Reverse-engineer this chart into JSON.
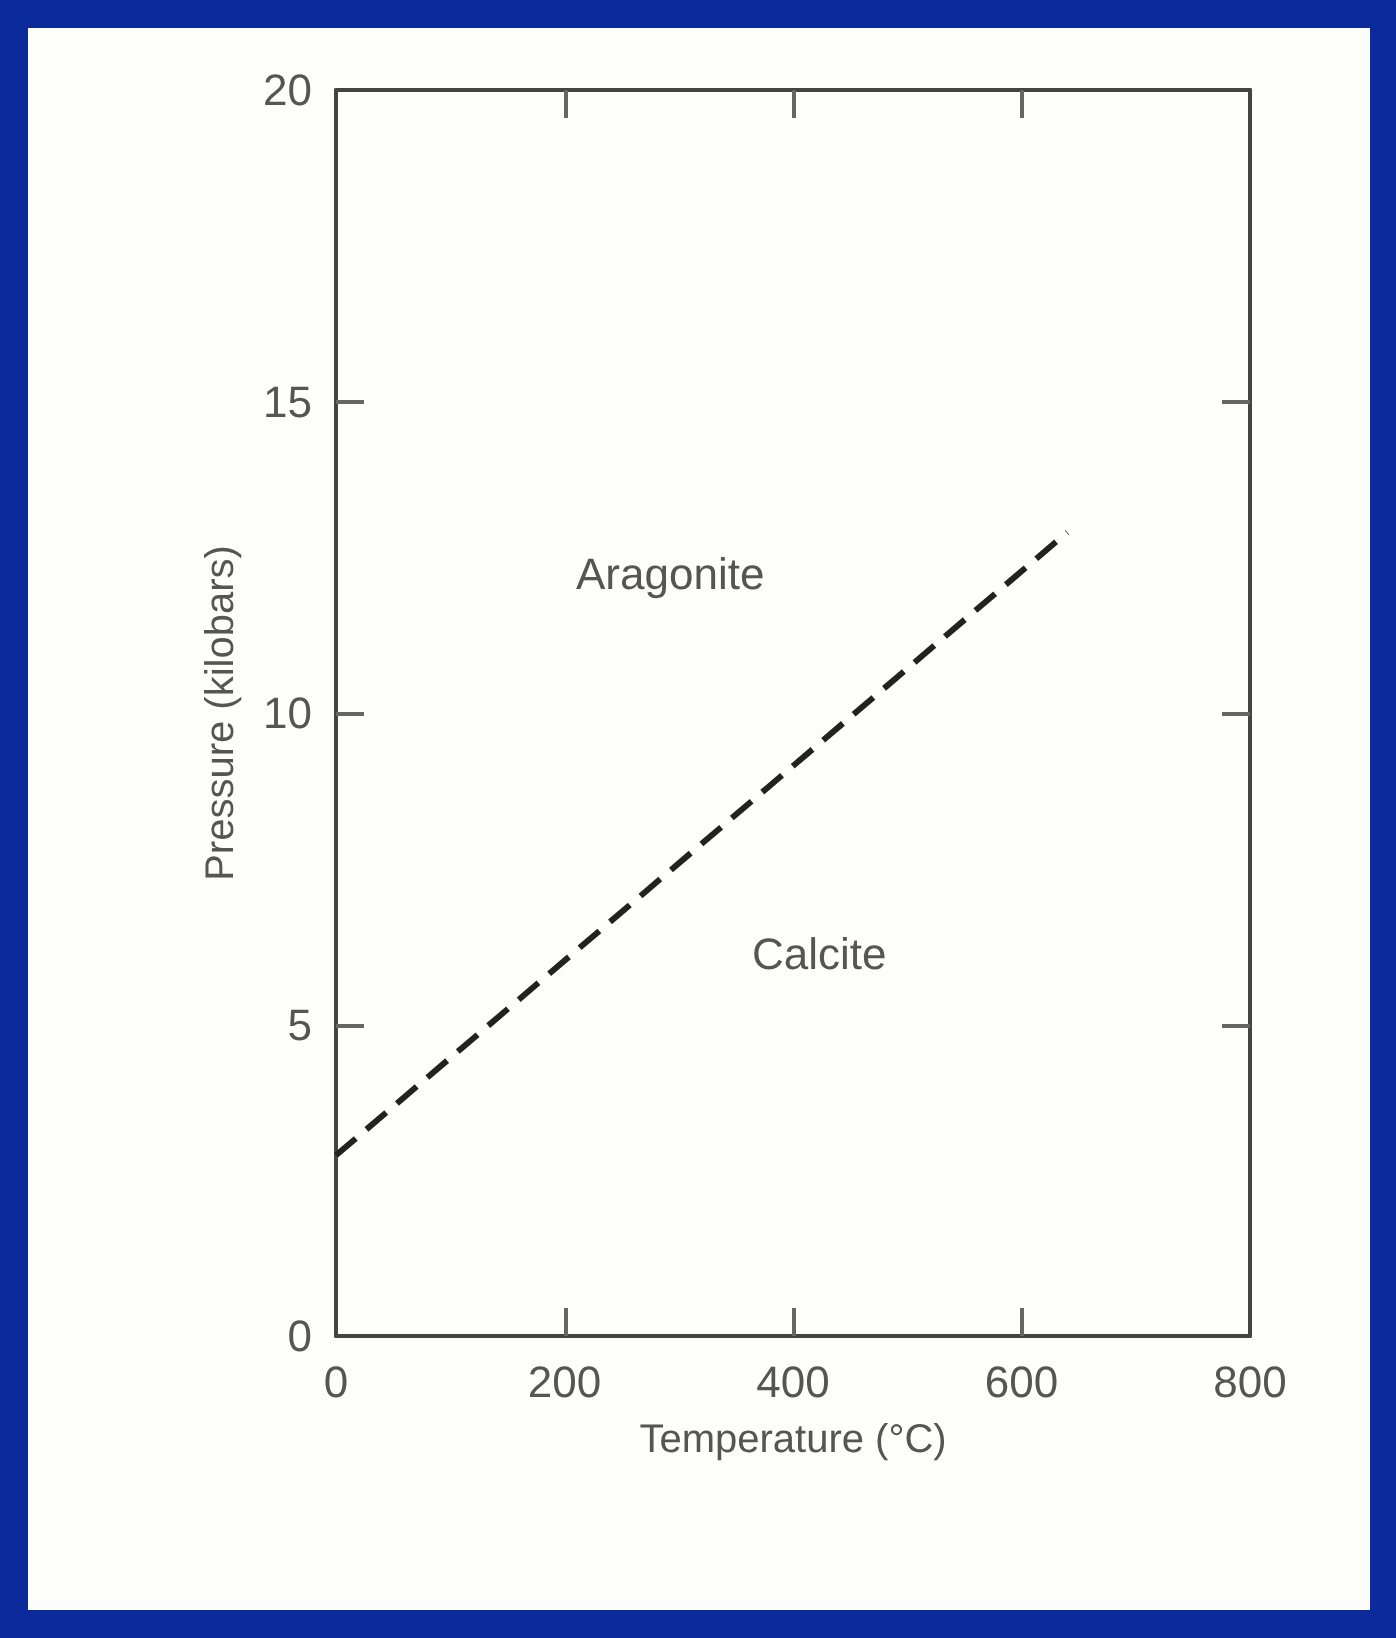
{
  "chart_data": {
    "type": "line",
    "xlabel": "Temperature (°C)",
    "ylabel": "Pressure (kilobars)",
    "x": [
      0,
      640
    ],
    "series": [
      {
        "color": "#222222",
        "values": [
          2.9,
          12.9
        ]
      }
    ],
    "line_style": "dashed",
    "marker": "none",
    "grid": false,
    "xlim": [
      0,
      800
    ],
    "xticks": [
      0,
      200,
      400,
      600,
      800
    ],
    "ylim": [
      0,
      20
    ],
    "yticks": [
      0,
      5,
      10,
      15,
      20
    ],
    "annotations": [
      "Aragonite",
      "Calcite"
    ]
  }
}
